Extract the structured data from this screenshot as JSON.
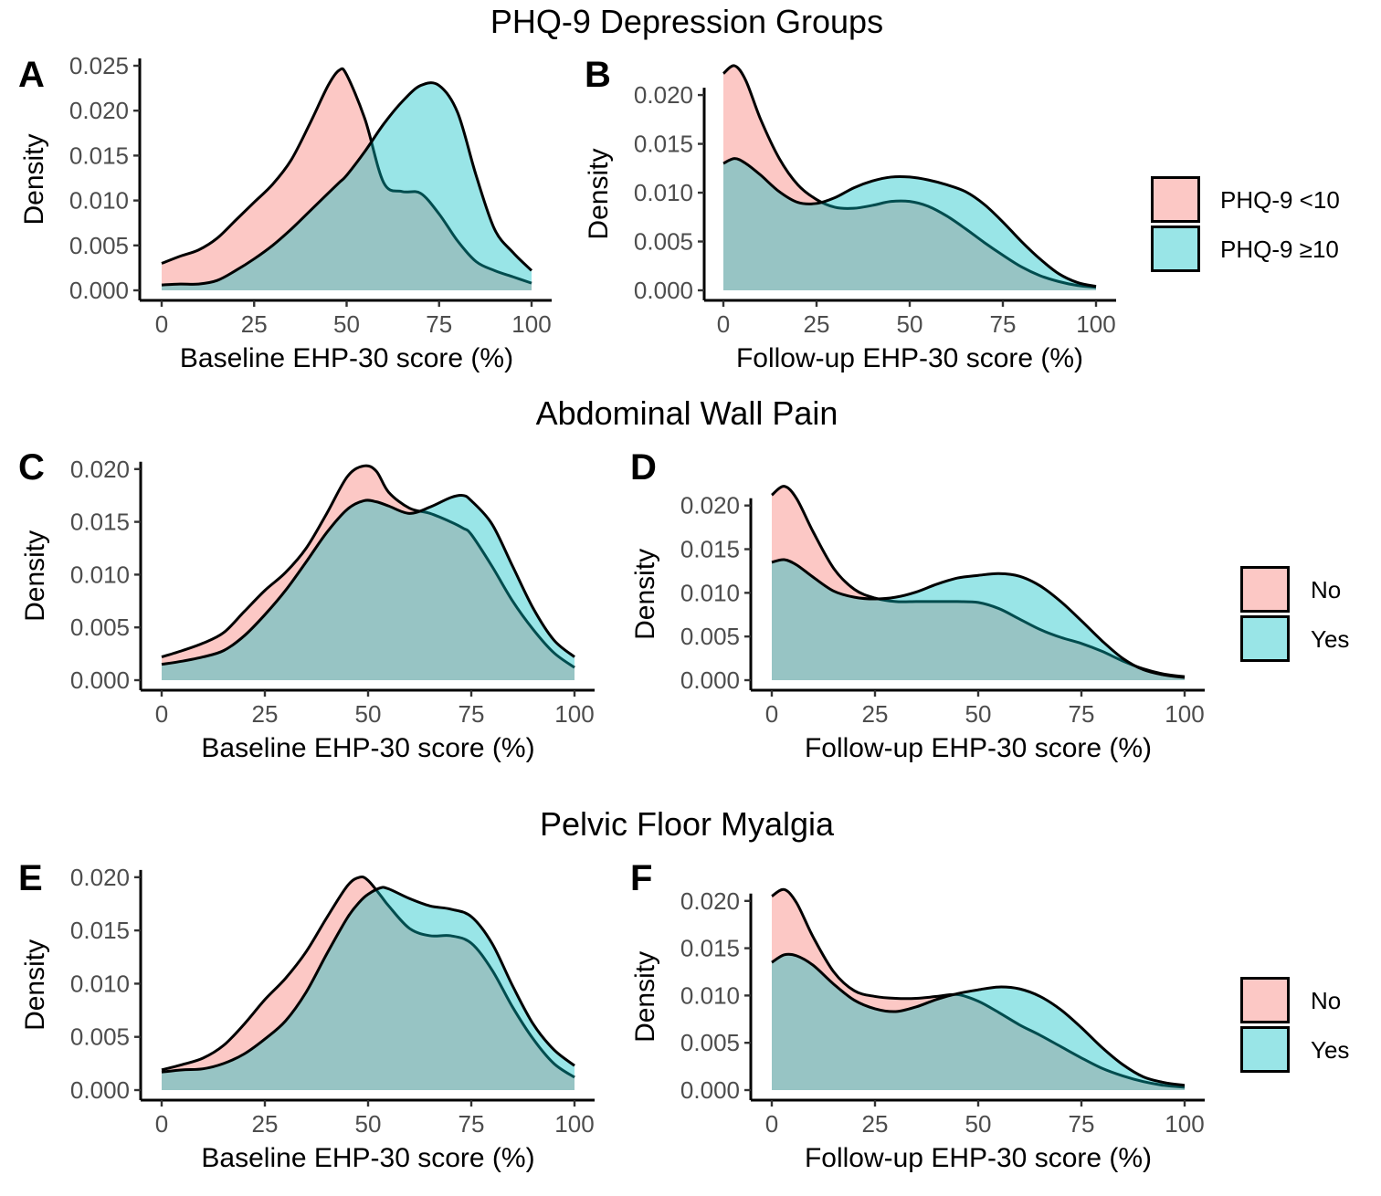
{
  "colors": {
    "group1": "#F8766D",
    "group2": "#00BFC4",
    "area_alpha": 0.4
  },
  "row_titles": [
    "PHQ-9 Depression Groups",
    "Abdominal Wall Pain",
    "Pelvic Floor Myalgia"
  ],
  "legends": [
    {
      "items": [
        "PHQ-9 <10",
        "PHQ-9 ≥10"
      ]
    },
    {
      "items": [
        "No",
        "Yes"
      ]
    },
    {
      "items": [
        "No",
        "Yes"
      ]
    }
  ],
  "chart_data": [
    {
      "panel": "A",
      "type": "area",
      "xlabel": "Baseline EHP-30 score (%)",
      "ylabel": "Density",
      "xlim": [
        0,
        100
      ],
      "ylim": [
        0,
        0.025
      ],
      "xticks": [
        0,
        25,
        50,
        75,
        100
      ],
      "yticks": [
        0,
        0.005,
        0.01,
        0.015,
        0.02,
        0.025
      ],
      "ytick_labels": [
        "0.000",
        "0.005",
        "0.010",
        "0.015",
        "0.020",
        "0.025"
      ],
      "x": [
        0,
        5,
        10,
        15,
        20,
        25,
        30,
        35,
        40,
        45,
        48,
        50,
        55,
        60,
        65,
        70,
        75,
        80,
        85,
        90,
        95,
        100
      ],
      "series": [
        {
          "name": "PHQ-9 <10",
          "values": [
            0.003,
            0.0038,
            0.0045,
            0.0058,
            0.0078,
            0.0098,
            0.0118,
            0.0145,
            0.0185,
            0.0228,
            0.0245,
            0.024,
            0.019,
            0.012,
            0.011,
            0.0108,
            0.0085,
            0.0055,
            0.0032,
            0.0022,
            0.0015,
            0.0008
          ]
        },
        {
          "name": "PHQ-9 ≥10",
          "values": [
            0.0006,
            0.0007,
            0.0007,
            0.0011,
            0.0022,
            0.0035,
            0.005,
            0.0068,
            0.0088,
            0.0108,
            0.012,
            0.0128,
            0.0155,
            0.0185,
            0.021,
            0.0228,
            0.0228,
            0.0198,
            0.0128,
            0.0068,
            0.0042,
            0.0022
          ]
        }
      ]
    },
    {
      "panel": "B",
      "type": "area",
      "xlabel": "Follow-up EHP-30 score (%)",
      "ylabel": "Density",
      "xlim": [
        0,
        100
      ],
      "ylim": [
        0,
        0.023
      ],
      "xticks": [
        0,
        25,
        50,
        75,
        100
      ],
      "yticks": [
        0,
        0.005,
        0.01,
        0.015,
        0.02
      ],
      "ytick_labels": [
        "0.000",
        "0.005",
        "0.010",
        "0.015",
        "0.020"
      ],
      "x": [
        0,
        3,
        6,
        10,
        15,
        20,
        25,
        30,
        35,
        40,
        45,
        50,
        55,
        60,
        65,
        70,
        75,
        80,
        85,
        90,
        95,
        100
      ],
      "series": [
        {
          "name": "PHQ-9 <10",
          "values": [
            0.0222,
            0.023,
            0.0215,
            0.0175,
            0.0135,
            0.0108,
            0.0093,
            0.0085,
            0.0084,
            0.0087,
            0.0091,
            0.0091,
            0.0086,
            0.0076,
            0.0063,
            0.0049,
            0.0036,
            0.0024,
            0.0015,
            0.0009,
            0.0005,
            0.0003
          ]
        },
        {
          "name": "PHQ-9 ≥10",
          "values": [
            0.013,
            0.0135,
            0.013,
            0.0118,
            0.0101,
            0.009,
            0.0089,
            0.0095,
            0.0105,
            0.0112,
            0.0116,
            0.0116,
            0.0113,
            0.0108,
            0.0101,
            0.0088,
            0.007,
            0.005,
            0.0032,
            0.0017,
            0.0008,
            0.0004
          ]
        }
      ]
    },
    {
      "panel": "C",
      "type": "area",
      "xlabel": "Baseline EHP-30 score (%)",
      "ylabel": "Density",
      "xlim": [
        0,
        100
      ],
      "ylim": [
        0,
        0.0205
      ],
      "xticks": [
        0,
        25,
        50,
        75,
        100
      ],
      "yticks": [
        0,
        0.005,
        0.01,
        0.015,
        0.02
      ],
      "ytick_labels": [
        "0.000",
        "0.005",
        "0.010",
        "0.015",
        "0.020"
      ],
      "x": [
        0,
        5,
        10,
        15,
        20,
        25,
        30,
        35,
        40,
        45,
        49,
        52,
        55,
        60,
        65,
        70,
        73,
        75,
        80,
        85,
        90,
        95,
        100
      ],
      "series": [
        {
          "name": "No",
          "values": [
            0.0022,
            0.0028,
            0.0035,
            0.0045,
            0.0065,
            0.0085,
            0.0102,
            0.0125,
            0.0158,
            0.0193,
            0.0203,
            0.0198,
            0.0178,
            0.0163,
            0.0158,
            0.015,
            0.0144,
            0.0138,
            0.0108,
            0.0075,
            0.0048,
            0.0026,
            0.0012
          ]
        },
        {
          "name": "Yes",
          "values": [
            0.0015,
            0.0018,
            0.0022,
            0.0028,
            0.0042,
            0.0062,
            0.0085,
            0.0112,
            0.014,
            0.0162,
            0.017,
            0.0169,
            0.0165,
            0.0158,
            0.0164,
            0.0173,
            0.0175,
            0.017,
            0.0148,
            0.0108,
            0.0068,
            0.0038,
            0.0022
          ]
        }
      ]
    },
    {
      "panel": "D",
      "type": "area",
      "xlabel": "Follow-up EHP-30 score (%)",
      "ylabel": "Density",
      "xlim": [
        0,
        100
      ],
      "ylim": [
        0,
        0.023
      ],
      "xticks": [
        0,
        25,
        50,
        75,
        100
      ],
      "yticks": [
        0,
        0.005,
        0.01,
        0.015,
        0.02
      ],
      "ytick_labels": [
        "0.000",
        "0.005",
        "0.010",
        "0.015",
        "0.020"
      ],
      "x": [
        0,
        3,
        6,
        10,
        15,
        20,
        25,
        30,
        35,
        40,
        45,
        50,
        55,
        60,
        65,
        70,
        75,
        80,
        85,
        90,
        95,
        100
      ],
      "series": [
        {
          "name": "No",
          "values": [
            0.0212,
            0.0222,
            0.0208,
            0.017,
            0.0128,
            0.0104,
            0.0094,
            0.009,
            0.009,
            0.009,
            0.009,
            0.0089,
            0.0082,
            0.007,
            0.0058,
            0.0049,
            0.0042,
            0.0033,
            0.0022,
            0.0013,
            0.0007,
            0.0004
          ]
        },
        {
          "name": "Yes",
          "values": [
            0.0135,
            0.0138,
            0.0132,
            0.0118,
            0.0102,
            0.0095,
            0.0093,
            0.0095,
            0.0101,
            0.011,
            0.0117,
            0.012,
            0.0122,
            0.0119,
            0.0108,
            0.009,
            0.0068,
            0.0045,
            0.0025,
            0.0012,
            0.0006,
            0.0003
          ]
        }
      ]
    },
    {
      "panel": "E",
      "type": "area",
      "xlabel": "Baseline EHP-30 score (%)",
      "ylabel": "Density",
      "xlim": [
        0,
        100
      ],
      "ylim": [
        0,
        0.0205
      ],
      "xticks": [
        0,
        25,
        50,
        75,
        100
      ],
      "yticks": [
        0,
        0.005,
        0.01,
        0.015,
        0.02
      ],
      "ytick_labels": [
        "0.000",
        "0.005",
        "0.010",
        "0.015",
        "0.020"
      ],
      "x": [
        0,
        5,
        10,
        15,
        20,
        25,
        30,
        35,
        40,
        45,
        48,
        50,
        53,
        55,
        60,
        65,
        70,
        75,
        80,
        85,
        90,
        95,
        100
      ],
      "series": [
        {
          "name": "No",
          "values": [
            0.0019,
            0.0024,
            0.003,
            0.0042,
            0.0062,
            0.0085,
            0.0105,
            0.013,
            0.0162,
            0.0192,
            0.02,
            0.0197,
            0.0183,
            0.0173,
            0.0152,
            0.0145,
            0.0145,
            0.0138,
            0.0113,
            0.0078,
            0.0048,
            0.0025,
            0.0012
          ]
        },
        {
          "name": "Yes",
          "values": [
            0.0017,
            0.0019,
            0.002,
            0.0025,
            0.0034,
            0.0048,
            0.0065,
            0.0092,
            0.0128,
            0.0162,
            0.0177,
            0.0184,
            0.019,
            0.0189,
            0.018,
            0.0173,
            0.017,
            0.0163,
            0.0138,
            0.0098,
            0.0062,
            0.0038,
            0.0023
          ]
        }
      ]
    },
    {
      "panel": "F",
      "type": "area",
      "xlabel": "Follow-up EHP-30 score (%)",
      "ylabel": "Density",
      "xlim": [
        0,
        100
      ],
      "ylim": [
        0,
        0.0222
      ],
      "xticks": [
        0,
        25,
        50,
        75,
        100
      ],
      "yticks": [
        0,
        0.005,
        0.01,
        0.015,
        0.02
      ],
      "ytick_labels": [
        "0.000",
        "0.005",
        "0.010",
        "0.015",
        "0.020"
      ],
      "x": [
        0,
        3,
        6,
        10,
        15,
        20,
        25,
        30,
        35,
        40,
        45,
        50,
        55,
        60,
        65,
        70,
        75,
        80,
        85,
        90,
        95,
        100
      ],
      "series": [
        {
          "name": "No",
          "values": [
            0.0205,
            0.0212,
            0.0198,
            0.0162,
            0.0125,
            0.0105,
            0.0099,
            0.0097,
            0.0097,
            0.0099,
            0.0101,
            0.0094,
            0.0082,
            0.0069,
            0.0058,
            0.0046,
            0.0034,
            0.0023,
            0.0015,
            0.0009,
            0.0005,
            0.0003
          ]
        },
        {
          "name": "Yes",
          "values": [
            0.0135,
            0.0143,
            0.0142,
            0.0132,
            0.0112,
            0.0095,
            0.0086,
            0.0083,
            0.0088,
            0.0096,
            0.0102,
            0.0106,
            0.0109,
            0.0107,
            0.0099,
            0.0085,
            0.0066,
            0.0045,
            0.0027,
            0.0014,
            0.0008,
            0.0005
          ]
        }
      ]
    }
  ]
}
